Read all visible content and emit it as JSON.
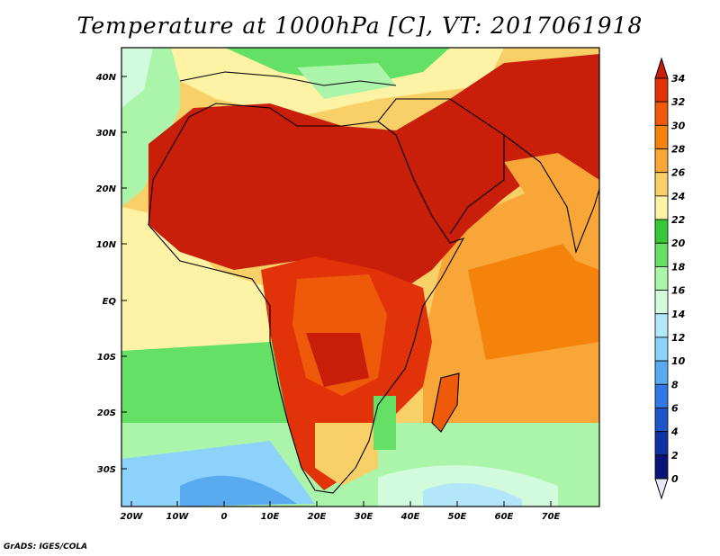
{
  "title": "Temperature at 1000hPa [C], VT: 2017061918",
  "credit": "GrADS: IGES/COLA",
  "map": {
    "lon_ticks": [
      "20W",
      "10W",
      "0",
      "10E",
      "20E",
      "30E",
      "40E",
      "50E",
      "60E",
      "70E"
    ],
    "lat_ticks": [
      "40N",
      "30N",
      "20N",
      "10N",
      "EQ",
      "10S",
      "20S",
      "30S"
    ]
  },
  "colorbar": {
    "labels": [
      "34",
      "32",
      "30",
      "28",
      "26",
      "24",
      "22",
      "20",
      "18",
      "16",
      "14",
      "12",
      "10",
      "8",
      "6",
      "4",
      "2",
      "0"
    ],
    "colors": [
      "#c81e0a",
      "#e1320a",
      "#ef5a0a",
      "#f5820a",
      "#f7a637",
      "#f9d067",
      "#fef3a4",
      "#37c837",
      "#64e164",
      "#aaf5aa",
      "#d2fadc",
      "#b4e6fa",
      "#8cd2fa",
      "#5aaaf0",
      "#2f78e6",
      "#1e55c8",
      "#0f32a5",
      "#0a1478"
    ],
    "bottom_arrow_color": "#e6e6fa",
    "top_arrow_color": "#c81e0a"
  }
}
